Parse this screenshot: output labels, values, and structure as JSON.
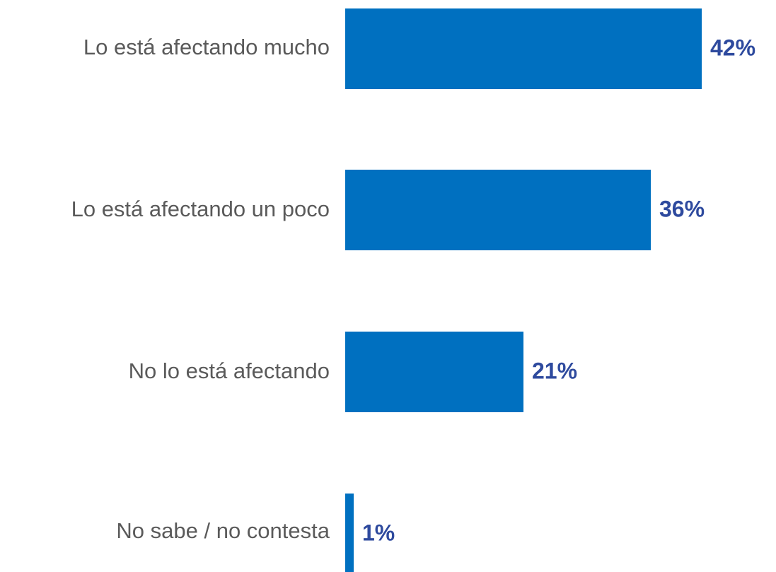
{
  "chart_data": {
    "type": "bar",
    "orientation": "horizontal",
    "categories": [
      "Lo está afectando mucho",
      "Lo está afectando un poco",
      "No lo está afectando",
      "No sabe / no contesta"
    ],
    "values": [
      42,
      36,
      21,
      1
    ],
    "value_labels": [
      "42%",
      "36%",
      "21%",
      "1%"
    ],
    "unit": "%",
    "title": "",
    "xlabel": "",
    "ylabel": "",
    "xlim": [
      0,
      42
    ],
    "grid": false,
    "legend": "none",
    "colors": {
      "bar": "#0070c0",
      "value_label": "#2e4a9e",
      "category_label": "#5a5a5a"
    }
  }
}
